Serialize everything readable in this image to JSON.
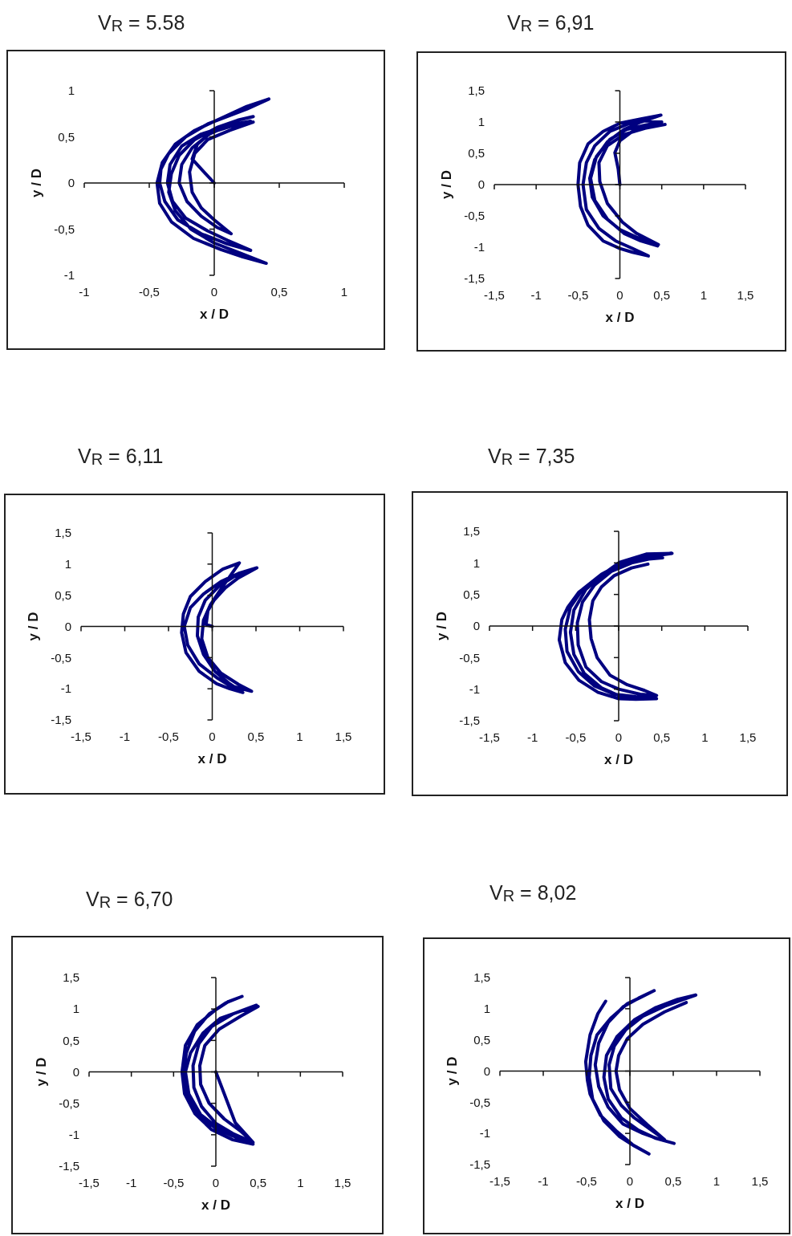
{
  "chart_data": [
    {
      "type": "line",
      "title": "V$_{R}$ = 5.58",
      "xlabel": "x / D",
      "ylabel": "y / D",
      "color": "#000080",
      "marker": "none",
      "line_style": "solid",
      "xlim": [
        -1,
        1
      ],
      "ylim": [
        -1,
        1
      ],
      "xticks": [
        -1,
        {
          "value": -0.5,
          "label": "-0,5"
        },
        0,
        {
          "value": 0.5,
          "label": "0,5"
        },
        1
      ],
      "yticks": [
        -1,
        {
          "value": -0.5,
          "label": "-0,5"
        },
        0,
        {
          "value": 0.5,
          "label": "0,5"
        },
        1
      ],
      "x": [
        0,
        -0.08,
        -0.17,
        -0.13,
        -0.02,
        0.12,
        0.3,
        0.12,
        -0.05,
        -0.15,
        -0.19,
        -0.17,
        -0.1,
        0,
        0.13,
        0.02,
        -0.1,
        -0.21,
        -0.27,
        -0.25,
        -0.17,
        -0.04,
        0.12,
        0.28,
        0.1,
        -0.1,
        -0.25,
        -0.34,
        -0.36,
        -0.32,
        -0.22,
        -0.05,
        0.1,
        0.28,
        0.1,
        -0.1,
        -0.28,
        -0.38,
        -0.42,
        -0.41,
        -0.35,
        -0.22,
        -0.05,
        0.1,
        0.25,
        0.42,
        0.25,
        0.05,
        -0.15,
        -0.3,
        -0.4,
        -0.44,
        -0.42,
        -0.33,
        -0.16,
        0.05,
        0.22,
        0.4,
        0.2,
        0,
        -0.18,
        -0.3,
        -0.35,
        -0.33,
        -0.27,
        -0.15,
        0.02,
        0.18,
        0.3
      ],
      "values": [
        0,
        0.12,
        0.26,
        0.42,
        0.55,
        0.61,
        0.66,
        0.57,
        0.47,
        0.32,
        0.12,
        -0.1,
        -0.27,
        -0.4,
        -0.55,
        -0.48,
        -0.36,
        -0.2,
        0,
        0.2,
        0.38,
        0.53,
        0.63,
        0.67,
        0.62,
        0.53,
        0.4,
        0.2,
        0,
        -0.2,
        -0.38,
        -0.52,
        -0.62,
        -0.73,
        -0.66,
        -0.55,
        -0.4,
        -0.2,
        0,
        0.15,
        0.32,
        0.5,
        0.64,
        0.72,
        0.8,
        0.91,
        0.83,
        0.7,
        0.57,
        0.42,
        0.22,
        0,
        -0.22,
        -0.42,
        -0.6,
        -0.72,
        -0.8,
        -0.87,
        -0.76,
        -0.65,
        -0.5,
        -0.3,
        -0.1,
        0.1,
        0.3,
        0.47,
        0.6,
        0.68,
        0.72
      ]
    },
    {
      "type": "line",
      "title": "V$_{R}$ = 6,91",
      "xlabel": "x / D",
      "ylabel": "y / D",
      "color": "#000080",
      "marker": "none",
      "line_style": "solid",
      "xlim": [
        -1.5,
        1.5
      ],
      "ylim": [
        -1.5,
        1.5
      ],
      "xticks": [
        {
          "value": -1.5,
          "label": "-1,5"
        },
        -1,
        {
          "value": -0.5,
          "label": "-0,5"
        },
        0,
        {
          "value": 0.5,
          "label": "0,5"
        },
        1,
        {
          "value": 1.5,
          "label": "1,5"
        }
      ],
      "yticks": [
        {
          "value": -1.5,
          "label": "-1,5"
        },
        -1,
        {
          "value": -0.5,
          "label": "-0,5"
        },
        0,
        {
          "value": 0.5,
          "label": "0,5"
        },
        1,
        {
          "value": 1.5,
          "label": "1,5"
        }
      ],
      "x": [
        0,
        -0.02,
        -0.06,
        0,
        0.15,
        0.3,
        0.54,
        0.3,
        0.05,
        -0.15,
        -0.25,
        -0.24,
        -0.15,
        0.03,
        0.2,
        0.46,
        0.2,
        0,
        -0.2,
        -0.33,
        -0.36,
        -0.3,
        -0.15,
        0.05,
        0.25,
        0.49,
        0.25,
        0,
        -0.2,
        -0.38,
        -0.48,
        -0.5,
        -0.47,
        -0.38,
        -0.2,
        0,
        0.15,
        0.34,
        0.15,
        -0.05,
        -0.25,
        -0.4,
        -0.44,
        -0.4,
        -0.3,
        -0.12,
        0.1,
        0.3,
        0.5,
        0.3,
        0.08,
        -0.12,
        -0.28,
        -0.35,
        -0.3,
        -0.15,
        0.05,
        0.25,
        0.45
      ],
      "values": [
        0,
        0.25,
        0.51,
        0.7,
        0.85,
        0.93,
        0.96,
        0.9,
        0.8,
        0.62,
        0.35,
        0.05,
        -0.3,
        -0.6,
        -0.78,
        -0.96,
        -0.84,
        -0.72,
        -0.5,
        -0.2,
        0.1,
        0.4,
        0.68,
        0.88,
        1,
        1.11,
        1.05,
        0.98,
        0.85,
        0.65,
        0.35,
        0,
        -0.35,
        -0.65,
        -0.9,
        -1.02,
        -1.08,
        -1.14,
        -1.02,
        -0.9,
        -0.7,
        -0.4,
        0,
        0.35,
        0.62,
        0.85,
        0.97,
        1.02,
        1,
        0.95,
        0.88,
        0.72,
        0.45,
        0.1,
        -0.25,
        -0.55,
        -0.78,
        -0.9,
        -0.98
      ]
    },
    {
      "type": "line",
      "title": "V$_{R}$ = 6,11",
      "xlabel": "x / D",
      "ylabel": "y / D",
      "color": "#000080",
      "marker": "none",
      "line_style": "solid",
      "xlim": [
        -1.5,
        1.5
      ],
      "ylim": [
        -1.5,
        1.5
      ],
      "xticks": [
        {
          "value": -1.5,
          "label": "-1,5"
        },
        -1,
        {
          "value": -0.5,
          "label": "-0,5"
        },
        0,
        {
          "value": 0.5,
          "label": "0,5"
        },
        1,
        {
          "value": 1.5,
          "label": "1,5"
        }
      ],
      "yticks": [
        {
          "value": -1.5,
          "label": "-1,5"
        },
        -1,
        {
          "value": -0.5,
          "label": "-0,5"
        },
        0,
        {
          "value": 0.5,
          "label": "0,5"
        },
        1,
        {
          "value": 1.5,
          "label": "1,5"
        }
      ],
      "x": [
        0,
        -0.07,
        -0.05,
        0.02,
        0.15,
        0.3,
        0.51,
        0.3,
        0.1,
        -0.1,
        -0.25,
        -0.32,
        -0.28,
        -0.15,
        0.05,
        0.2,
        0.45,
        0.3,
        0.1,
        -0.05,
        -0.12,
        -0.1,
        -0.02,
        0.1,
        0.2,
        0.31,
        0.12,
        -0.08,
        -0.25,
        -0.33,
        -0.35,
        -0.3,
        -0.15,
        0.05,
        0.2,
        0.35,
        0.2,
        0.03,
        -0.1,
        -0.17,
        -0.16,
        -0.08,
        0.08,
        0.25,
        0.45
      ],
      "values": [
        0,
        0.03,
        0.25,
        0.42,
        0.62,
        0.78,
        0.94,
        0.85,
        0.72,
        0.52,
        0.3,
        0,
        -0.3,
        -0.6,
        -0.82,
        -0.95,
        -1.04,
        -0.93,
        -0.75,
        -0.5,
        -0.2,
        0.1,
        0.35,
        0.6,
        0.8,
        1.02,
        0.92,
        0.72,
        0.48,
        0.2,
        -0.1,
        -0.42,
        -0.72,
        -0.92,
        -1,
        -1.06,
        -0.92,
        -0.72,
        -0.45,
        -0.15,
        0.15,
        0.42,
        0.65,
        0.8,
        0.9
      ]
    },
    {
      "type": "line",
      "title": "V$_{R}$ = 7,35",
      "xlabel": "x / D",
      "ylabel": "y / D",
      "color": "#000080",
      "marker": "none",
      "line_style": "solid",
      "xlim": [
        -1.5,
        1.5
      ],
      "ylim": [
        -1.5,
        1.5
      ],
      "xticks": [
        {
          "value": -1.5,
          "label": "-1,5"
        },
        -1,
        {
          "value": -0.5,
          "label": "-0,5"
        },
        0,
        {
          "value": 0.5,
          "label": "0,5"
        },
        1,
        {
          "value": 1.5,
          "label": "1,5"
        }
      ],
      "yticks": [
        {
          "value": -1.5,
          "label": "-1,5"
        },
        -1,
        {
          "value": -0.5,
          "label": "-0,5"
        },
        0,
        {
          "value": 0.5,
          "label": "0,5"
        },
        1,
        {
          "value": 1.5,
          "label": "1,5"
        }
      ],
      "x": [
        0.34,
        0.15,
        -0.05,
        -0.2,
        -0.3,
        -0.34,
        -0.32,
        -0.25,
        -0.1,
        0.1,
        0.3,
        0.44,
        0.25,
        0,
        -0.2,
        -0.38,
        -0.47,
        -0.48,
        -0.42,
        -0.28,
        -0.08,
        0.15,
        0.35,
        0.51,
        0.3,
        0.05,
        -0.18,
        -0.38,
        -0.52,
        -0.56,
        -0.52,
        -0.4,
        -0.2,
        0,
        0.2,
        0.44,
        0.2,
        0,
        -0.24,
        -0.46,
        -0.62,
        -0.69,
        -0.66,
        -0.59,
        -0.46,
        -0.24,
        0.01,
        0.32,
        0.62,
        0.35,
        0.05,
        -0.2,
        -0.42,
        -0.56,
        -0.62,
        -0.6,
        -0.47,
        -0.28,
        -0.05,
        0.2,
        0.4
      ],
      "values": [
        0.98,
        0.92,
        0.8,
        0.62,
        0.4,
        0.1,
        -0.2,
        -0.5,
        -0.78,
        -0.93,
        -1.02,
        -1.1,
        -1.08,
        -1,
        -0.88,
        -0.65,
        -0.3,
        0.05,
        0.38,
        0.65,
        0.87,
        1,
        1.06,
        1.08,
        1.06,
        0.98,
        0.82,
        0.58,
        0.25,
        -0.1,
        -0.45,
        -0.75,
        -0.98,
        -1.1,
        -1.14,
        -1.15,
        -1.16,
        -1.15,
        -1.05,
        -0.86,
        -0.58,
        -0.22,
        0.1,
        0.3,
        0.54,
        0.76,
        1.01,
        1.14,
        1.15,
        1.1,
        1,
        0.82,
        0.58,
        0.3,
        -0.05,
        -0.4,
        -0.72,
        -0.95,
        -1.08,
        -1.12,
        -1.13
      ]
    },
    {
      "type": "line",
      "title": "V$_{R}$ = 6,70",
      "xlabel": "x / D",
      "ylabel": "y / D",
      "color": "#000080",
      "marker": "none",
      "line_style": "solid",
      "xlim": [
        -1.5,
        1.5
      ],
      "ylim": [
        -1.5,
        1.5
      ],
      "xticks": [
        {
          "value": -1.5,
          "label": "-1,5"
        },
        -1,
        {
          "value": -0.5,
          "label": "-0,5"
        },
        0,
        {
          "value": 0.5,
          "label": "0,5"
        },
        1,
        {
          "value": 1.5,
          "label": "1,5"
        }
      ],
      "yticks": [
        {
          "value": -1.5,
          "label": "-1,5"
        },
        -1,
        {
          "value": -0.5,
          "label": "-0,5"
        },
        0,
        {
          "value": 0.5,
          "label": "0,5"
        },
        1,
        {
          "value": 1.5,
          "label": "1,5"
        }
      ],
      "x": [
        0,
        0.1,
        0.23,
        0.44,
        0.3,
        0.1,
        -0.08,
        -0.18,
        -0.19,
        -0.13,
        0.04,
        0.3,
        0.5,
        0.3,
        0.05,
        -0.15,
        -0.3,
        -0.36,
        -0.32,
        -0.18,
        0.05,
        0.25,
        0.44,
        0.2,
        -0.05,
        -0.25,
        -0.37,
        -0.4,
        -0.36,
        -0.22,
        0,
        0.15,
        0.31,
        0.12,
        -0.08,
        -0.25,
        -0.35,
        -0.38,
        -0.33,
        -0.2,
        0,
        0.2,
        0.4,
        0.2,
        0,
        -0.17,
        -0.26,
        -0.27,
        -0.2,
        -0.05,
        0.2,
        0.48
      ],
      "values": [
        0,
        -0.35,
        -0.81,
        -1.12,
        -0.95,
        -0.75,
        -0.5,
        -0.2,
        0.1,
        0.42,
        0.68,
        0.89,
        1.04,
        0.97,
        0.85,
        0.62,
        0.3,
        0,
        -0.35,
        -0.68,
        -0.92,
        -1.05,
        -1.15,
        -1.08,
        -0.92,
        -0.66,
        -0.35,
        0,
        0.42,
        0.75,
        0.99,
        1.12,
        1.2,
        1.1,
        0.92,
        0.65,
        0.3,
        -0.05,
        -0.4,
        -0.7,
        -0.9,
        -1.02,
        -1.1,
        -0.98,
        -0.82,
        -0.55,
        -0.25,
        0.1,
        0.45,
        0.72,
        0.92,
        1.06
      ]
    },
    {
      "type": "line",
      "title": "V$_{R}$ = 8,02",
      "xlabel": "x / D",
      "ylabel": "y / D",
      "color": "#000080",
      "marker": "none",
      "line_style": "solid",
      "xlim": [
        -1.5,
        1.5
      ],
      "ylim": [
        -1.5,
        1.5
      ],
      "xticks": [
        {
          "value": -1.5,
          "label": "-1,5"
        },
        -1,
        {
          "value": -0.5,
          "label": "-0,5"
        },
        0,
        {
          "value": 0.5,
          "label": "0,5"
        },
        1,
        {
          "value": 1.5,
          "label": "1,5"
        }
      ],
      "yticks": [
        {
          "value": -1.5,
          "label": "-1,5"
        },
        -1,
        {
          "value": -0.5,
          "label": "-0,5"
        },
        0,
        {
          "value": 0.5,
          "label": "0,5"
        },
        1,
        {
          "value": 1.5,
          "label": "1,5"
        }
      ],
      "x": [
        -0.28,
        -0.37,
        -0.46,
        -0.51,
        -0.49,
        -0.46,
        -0.34,
        -0.15,
        0.03,
        0.22,
        0.05,
        -0.12,
        -0.3,
        -0.43,
        -0.47,
        -0.45,
        -0.38,
        -0.22,
        -0.03,
        0.12,
        0.28,
        0.1,
        -0.08,
        -0.25,
        -0.36,
        -0.4,
        -0.36,
        -0.25,
        -0.08,
        0.15,
        0.35,
        0.51,
        0.3,
        0.1,
        -0.1,
        -0.25,
        -0.3,
        -0.27,
        -0.15,
        0.05,
        0.3,
        0.55,
        0.76,
        0.6,
        0.4,
        0.15,
        -0.05,
        -0.18,
        -0.24,
        -0.22,
        -0.1,
        0.05,
        0.22,
        0.4,
        0.2,
        0,
        -0.12,
        -0.16,
        -0.13,
        -0.03,
        0.15,
        0.4,
        0.65
      ],
      "values": [
        1.12,
        0.92,
        0.58,
        0.15,
        -0.15,
        -0.37,
        -0.71,
        -0.97,
        -1.18,
        -1.33,
        -1.2,
        -1.05,
        -0.8,
        -0.45,
        -0.1,
        0.25,
        0.58,
        0.85,
        1.08,
        1.18,
        1.29,
        1.17,
        1.03,
        0.78,
        0.45,
        0.1,
        -0.25,
        -0.58,
        -0.85,
        -1,
        -1.1,
        -1.16,
        -1.08,
        -0.95,
        -0.75,
        -0.45,
        -0.1,
        0.25,
        0.55,
        0.82,
        1.02,
        1.15,
        1.22,
        1.14,
        1.04,
        0.88,
        0.66,
        0.4,
        0.1,
        -0.28,
        -0.55,
        -0.75,
        -0.92,
        -1.1,
        -0.86,
        -0.6,
        -0.3,
        0,
        0.25,
        0.52,
        0.75,
        0.95,
        1.1
      ]
    }
  ]
}
